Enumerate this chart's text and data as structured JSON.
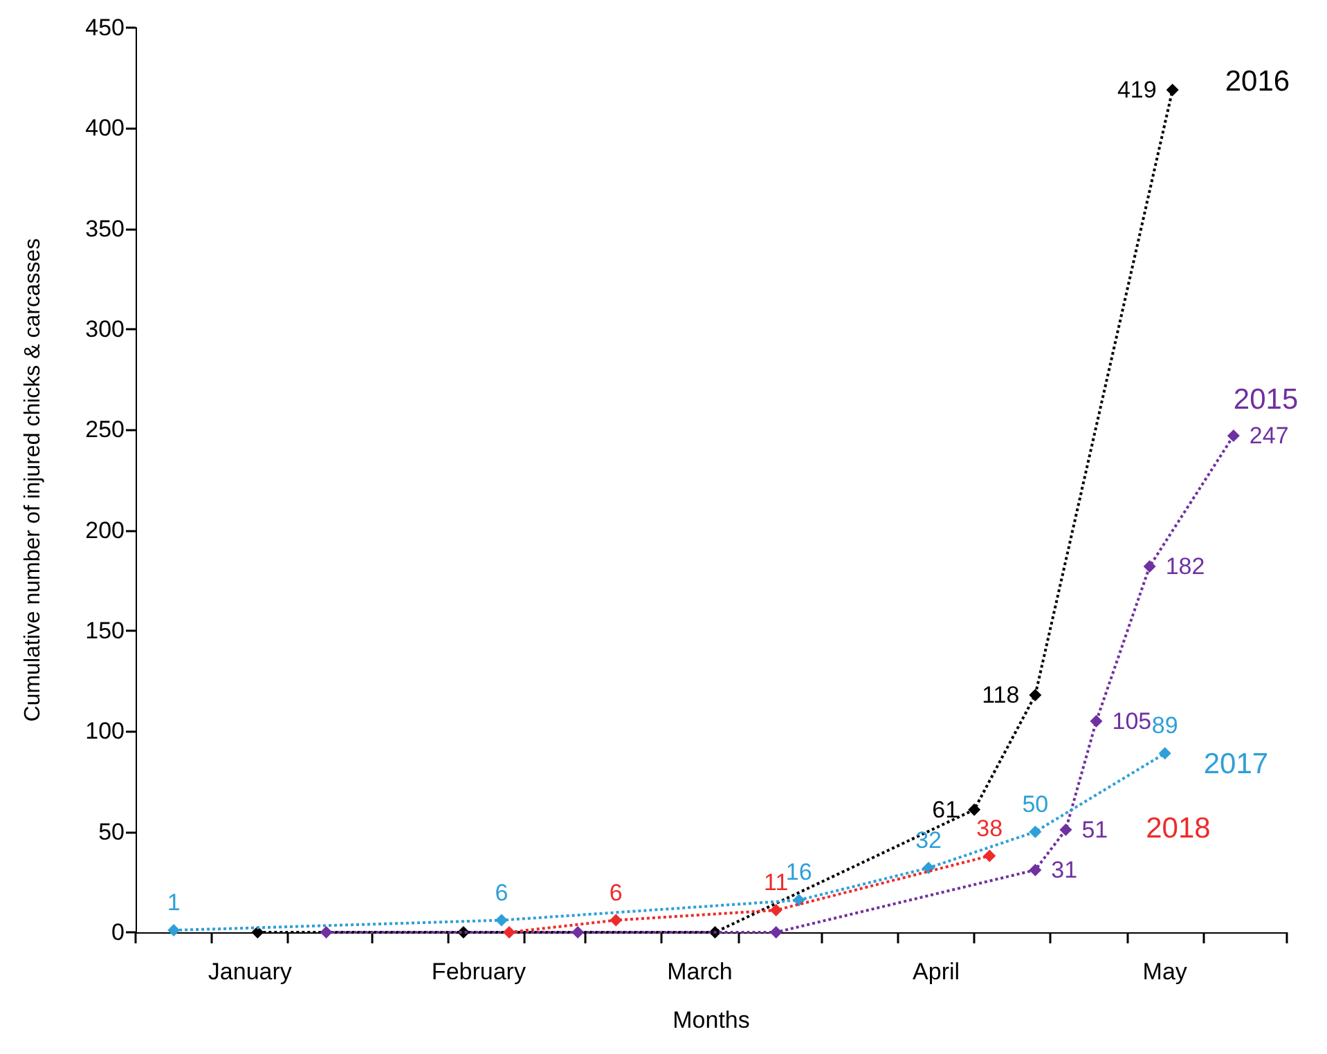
{
  "chart_data": {
    "type": "line",
    "xlabel": "Months",
    "ylabel": "Cumulative number of injured chicks & carcasses",
    "xlim": [
      "--01-01",
      "--06-01"
    ],
    "xticks": [
      {
        "value": "--01-01",
        "label": null
      },
      {
        "value": "--01-11",
        "label": null
      },
      {
        "value": "--01-16",
        "label": "January"
      },
      {
        "value": "--01-21",
        "label": null
      },
      {
        "value": "--02-01",
        "label": null
      },
      {
        "value": "--02-11",
        "label": null
      },
      {
        "value": "--02-15",
        "label": "February"
      },
      {
        "value": "--02-21",
        "label": null
      },
      {
        "value": "--03-01",
        "label": null
      },
      {
        "value": "--03-11",
        "label": null
      },
      {
        "value": "--03-16",
        "label": "March"
      },
      {
        "value": "--03-21",
        "label": null
      },
      {
        "value": "--04-01",
        "label": null
      },
      {
        "value": "--04-11",
        "label": null
      },
      {
        "value": "--04-16",
        "label": "April"
      },
      {
        "value": "--04-21",
        "label": null
      },
      {
        "value": "--05-01",
        "label": null
      },
      {
        "value": "--05-11",
        "label": null
      },
      {
        "value": "--05-16",
        "label": "May"
      },
      {
        "value": "--05-21",
        "label": null
      },
      {
        "value": "--06-01",
        "label": null
      }
    ],
    "ylim": [
      0,
      450
    ],
    "yticks": [
      0,
      50,
      100,
      150,
      200,
      250,
      300,
      350,
      400,
      450
    ],
    "grid": false,
    "legend": false,
    "marker": "diamond",
    "line_style": "dotted",
    "series": [
      {
        "name": "2016",
        "color": "#000000",
        "x": [
          "--01-17",
          "--02-13",
          "--03-18",
          "--04-21",
          "--04-29",
          "--05-17"
        ],
        "values": [
          0,
          0,
          0,
          61,
          118,
          419
        ],
        "value_labels": [
          null,
          null,
          null,
          "61",
          "118",
          "419"
        ]
      },
      {
        "name": "2015",
        "color": "#7030a0",
        "x": [
          "--01-26",
          "--02-28",
          "--03-26",
          "--04-29",
          "--05-03",
          "--05-07",
          "--05-14",
          "--05-25"
        ],
        "values": [
          0,
          0,
          0,
          31,
          51,
          105,
          182,
          247
        ],
        "value_labels": [
          null,
          null,
          null,
          "31",
          "51",
          "105",
          "182",
          "247"
        ]
      },
      {
        "name": "2017",
        "color": "#2e9fd8",
        "x": [
          "--01-06",
          "--02-18",
          "--03-29",
          "--04-15",
          "--04-29",
          "--05-16"
        ],
        "values": [
          1,
          6,
          16,
          32,
          50,
          89
        ],
        "value_labels": [
          "1",
          "6",
          "16",
          "32",
          "50",
          "89"
        ]
      },
      {
        "name": "2018",
        "color": "#ee2b2b",
        "x": [
          "--02-19",
          "--03-05",
          "--03-26",
          "--04-23"
        ],
        "values": [
          0,
          6,
          11,
          38
        ],
        "value_labels": [
          null,
          "6",
          "11",
          "38"
        ]
      }
    ]
  }
}
